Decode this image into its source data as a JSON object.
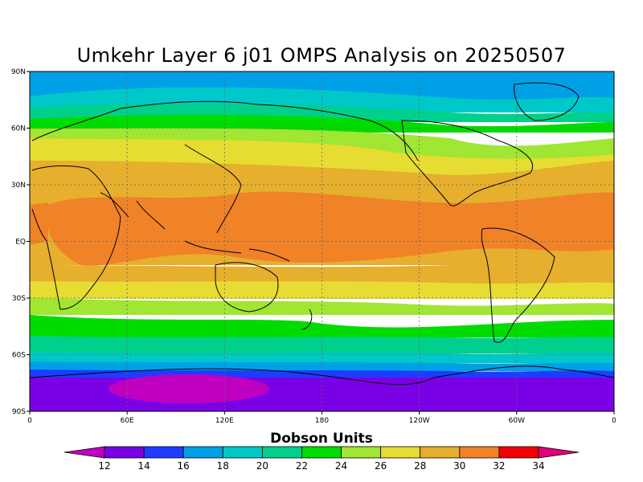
{
  "title": "Umkehr Layer 6 j01 OMPS Analysis on 20250507",
  "map": {
    "lat_ticks": [
      "90N",
      "60N",
      "30N",
      "EQ",
      "30S",
      "60S",
      "90S"
    ],
    "lon_ticks": [
      "0",
      "60E",
      "120E",
      "180",
      "120W",
      "60W",
      "0"
    ]
  },
  "colorbar": {
    "label": "Dobson Units",
    "ticks": [
      "12",
      "14",
      "16",
      "18",
      "20",
      "22",
      "24",
      "26",
      "28",
      "30",
      "32",
      "34"
    ],
    "colors": [
      "#7a00e6",
      "#1e3cff",
      "#00a0e6",
      "#00c8c8",
      "#00d08c",
      "#00dc00",
      "#a0e632",
      "#e6dc32",
      "#e6af2d",
      "#f08228",
      "#f00000"
    ],
    "low_color": "#c000c0",
    "high_color": "#e0007a"
  }
}
